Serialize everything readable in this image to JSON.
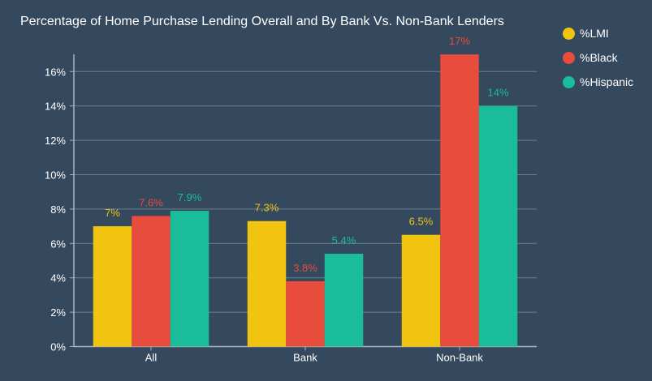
{
  "chart_data": {
    "type": "bar",
    "title": "Percentage of Home Purchase Lending Overall and By Bank Vs. Non-Bank Lenders",
    "categories": [
      "All",
      "Bank",
      "Non-Bank"
    ],
    "series": [
      {
        "name": "%LMI",
        "color": "#f1c40f",
        "values": [
          7,
          7.3,
          6.5
        ],
        "labels": [
          "7%",
          "7.3%",
          "6.5%"
        ]
      },
      {
        "name": "%Black",
        "color": "#e74c3c",
        "values": [
          7.6,
          3.8,
          17
        ],
        "labels": [
          "7.6%",
          "3.8%",
          "17%"
        ]
      },
      {
        "name": "%Hispanic",
        "color": "#1abc9c",
        "values": [
          7.9,
          5.4,
          14
        ],
        "labels": [
          "7.9%",
          "5.4%",
          "14%"
        ]
      }
    ],
    "ylim": [
      0,
      17
    ],
    "yticks": [
      0,
      2,
      4,
      6,
      8,
      10,
      12,
      14,
      16
    ],
    "ytick_labels": [
      "0%",
      "2%",
      "4%",
      "6%",
      "8%",
      "10%",
      "12%",
      "14%",
      "16%"
    ],
    "xlabel": "",
    "ylabel": "",
    "grid": true,
    "legend_position": "top-right"
  }
}
